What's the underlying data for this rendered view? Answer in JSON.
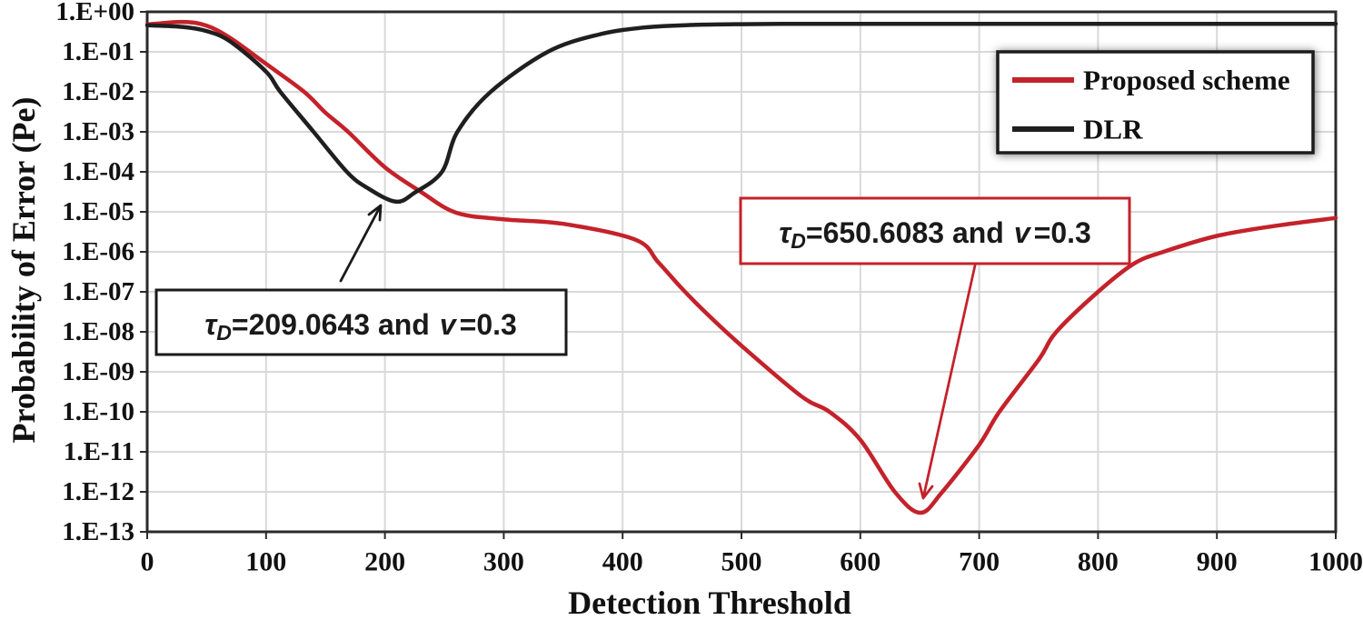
{
  "chart_data": {
    "type": "line",
    "title": "",
    "xlabel": "Detection Threshold",
    "ylabel": "Probability of Error (Pe)",
    "x_scale": "linear",
    "y_scale": "log",
    "xlim": [
      0,
      1000
    ],
    "ylim": [
      1e-13,
      1
    ],
    "grid": true,
    "x_ticks": [
      0,
      100,
      200,
      300,
      400,
      500,
      600,
      700,
      800,
      900,
      1000
    ],
    "y_tick_labels": [
      "1.E+00",
      "1.E-01",
      "1.E-02",
      "1.E-03",
      "1.E-04",
      "1.E-05",
      "1.E-06",
      "1.E-07",
      "1.E-08",
      "1.E-09",
      "1.E-10",
      "1.E-11",
      "1.E-12",
      "1.E-13"
    ],
    "legend_position": "top-right",
    "series": [
      {
        "name": "Proposed scheme",
        "color": "#c4222a",
        "optimal_threshold": 650.6083,
        "points": [
          [
            0,
            0.48
          ],
          [
            30,
            0.56
          ],
          [
            50,
            0.45
          ],
          [
            70,
            0.22
          ],
          [
            100,
            0.05
          ],
          [
            132,
            0.01
          ],
          [
            150,
            0.003
          ],
          [
            169,
            0.001
          ],
          [
            200,
            0.00013
          ],
          [
            230,
            3.2e-05
          ],
          [
            260,
            9.5e-06
          ],
          [
            300,
            6.5e-06
          ],
          [
            350,
            5e-06
          ],
          [
            411,
            2e-06
          ],
          [
            430,
            5.5e-07
          ],
          [
            450,
            1.2e-07
          ],
          [
            470,
            3e-08
          ],
          [
            500,
            4.5e-09
          ],
          [
            550,
            2.5e-10
          ],
          [
            574,
            1e-10
          ],
          [
            600,
            2e-11
          ],
          [
            629,
            1e-12
          ],
          [
            650.6083,
            3e-13
          ],
          [
            669,
            1e-12
          ],
          [
            700,
            1.5e-11
          ],
          [
            717,
            1e-10
          ],
          [
            750,
            2e-09
          ],
          [
            765,
            1e-08
          ],
          [
            800,
            1e-07
          ],
          [
            830,
            5e-07
          ],
          [
            855,
            1e-06
          ],
          [
            900,
            2.5e-06
          ],
          [
            950,
            4.5e-06
          ],
          [
            1000,
            7e-06
          ]
        ]
      },
      {
        "name": "DLR",
        "color": "#1f1f1f",
        "optimal_threshold": 209.0643,
        "points": [
          [
            0,
            0.46
          ],
          [
            30,
            0.42
          ],
          [
            50,
            0.33
          ],
          [
            70,
            0.18
          ],
          [
            100,
            0.032
          ],
          [
            112,
            0.01
          ],
          [
            140,
            0.001
          ],
          [
            168,
            0.0001
          ],
          [
            185,
            4e-05
          ],
          [
            209.0643,
            1.8e-05
          ],
          [
            225,
            3e-05
          ],
          [
            248,
            0.0001
          ],
          [
            261,
            0.001
          ],
          [
            289,
            0.01
          ],
          [
            337,
            0.1
          ],
          [
            380,
            0.27
          ],
          [
            420,
            0.41
          ],
          [
            460,
            0.47
          ],
          [
            500,
            0.49
          ],
          [
            550,
            0.5
          ],
          [
            600,
            0.5
          ],
          [
            700,
            0.5
          ],
          [
            800,
            0.5
          ],
          [
            900,
            0.5
          ],
          [
            1000,
            0.5
          ]
        ]
      }
    ],
    "annotations": [
      {
        "id": "dlr-optimal",
        "tau_symbol": "τ",
        "subscript": "D",
        "mid": "=209.0643 and",
        "variable": "v",
        "end": "=0.3",
        "plain_text": "τD=209.0643 and v =0.3",
        "tau_value": 209.0643,
        "v_value": 0.3,
        "box_color": "#1a1a1a"
      },
      {
        "id": "proposed-optimal",
        "tau_symbol": "τ",
        "subscript": "D",
        "mid": "=650.6083 and",
        "variable": "v",
        "end": "=0.3",
        "plain_text": "τD=650.6083 and v =0.3",
        "tau_value": 650.6083,
        "v_value": 0.3,
        "box_color": "#c4222a"
      }
    ]
  }
}
